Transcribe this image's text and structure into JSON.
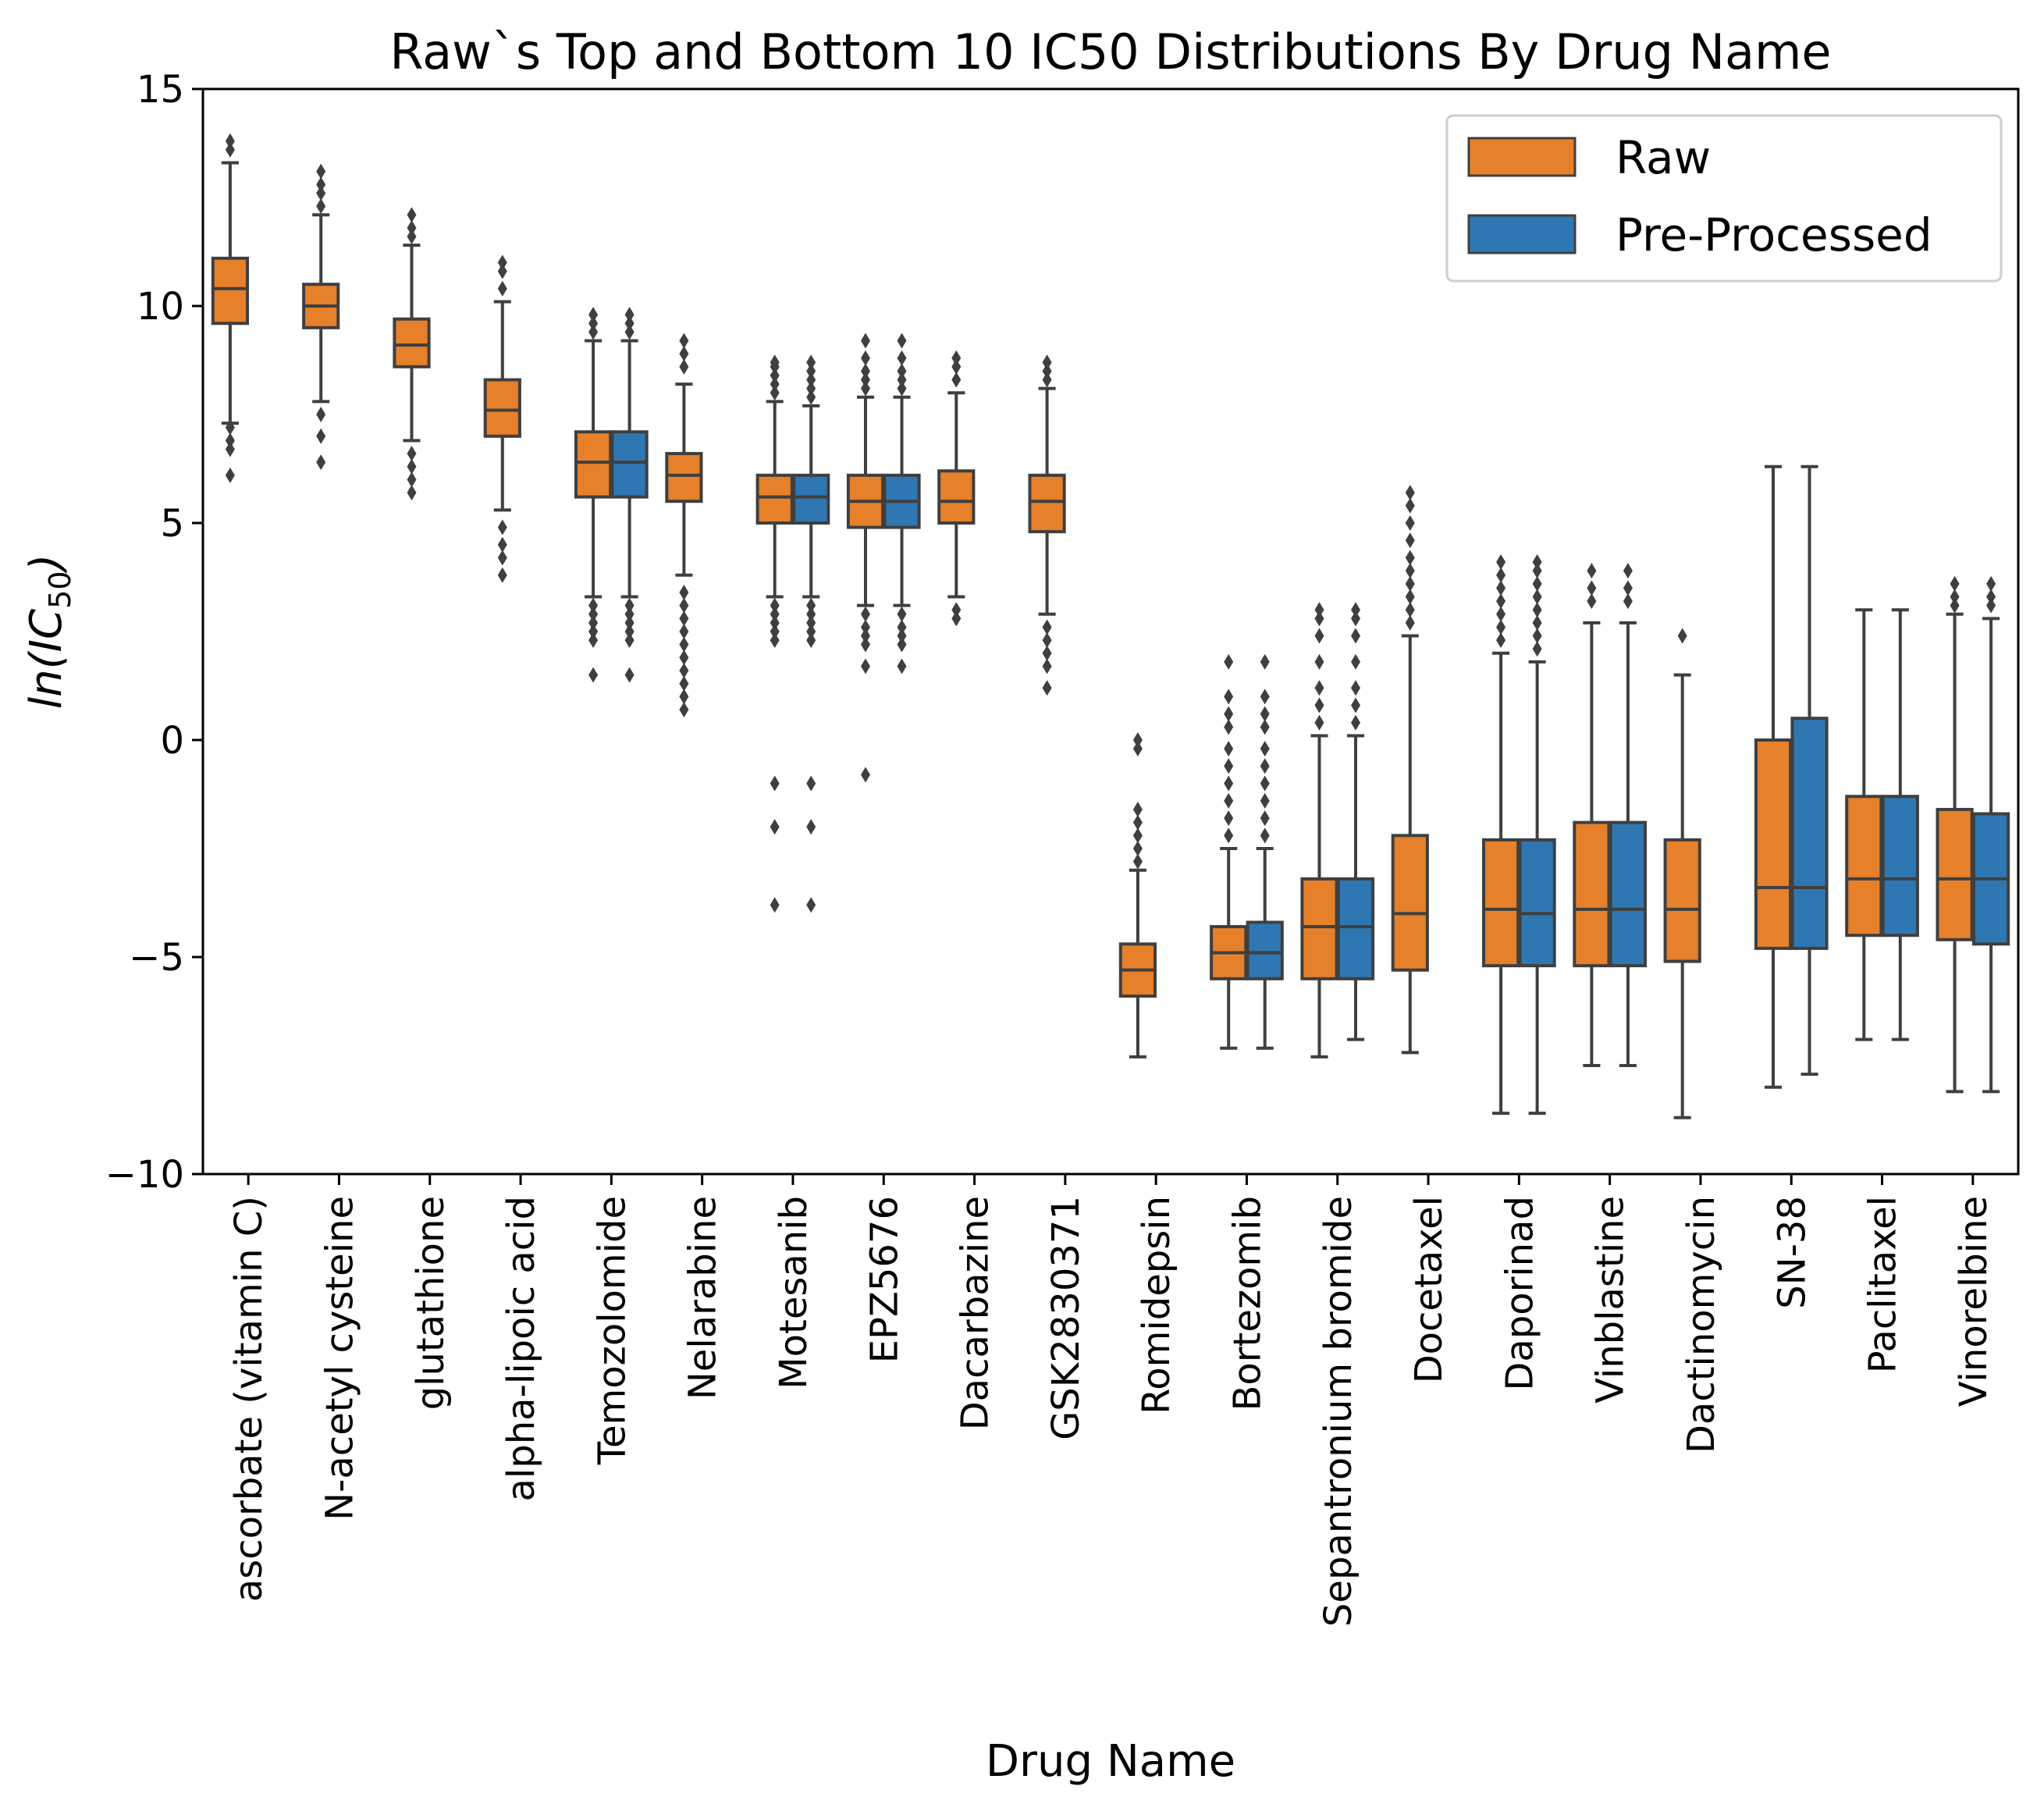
{
  "chart_data": {
    "type": "boxplot",
    "title": "Raw`s Top and Bottom 10 IC50 Distributions By Drug Name",
    "xlabel": "Drug Name",
    "ylabel": "ln(IC50)",
    "ylabel_parts": {
      "base": "ln(",
      "sym": "IC",
      "sub": "50",
      "close": ")"
    },
    "ylim": [
      -10,
      15
    ],
    "yticks": [
      {
        "value": -10,
        "label": "−10"
      },
      {
        "value": -5,
        "label": "−5"
      },
      {
        "value": 0,
        "label": "0"
      },
      {
        "value": 5,
        "label": "5"
      },
      {
        "value": 10,
        "label": "10"
      },
      {
        "value": 15,
        "label": "15"
      }
    ],
    "grid": false,
    "legend": {
      "position": "top-right",
      "entries": [
        {
          "name": "Raw",
          "color": "#E6802A"
        },
        {
          "name": "Pre-Processed",
          "color": "#2F77B2"
        }
      ]
    },
    "categories": [
      "ascorbate (vitamin C)",
      "N-acetyl cysteine",
      "glutathione",
      "alpha-lipoic acid",
      "Temozolomide",
      "Nelarabine",
      "Motesanib",
      "EPZ5676",
      "Dacarbazine",
      "GSK2830371",
      "Romidepsin",
      "Bortezomib",
      "Sepantronium bromide",
      "Docetaxel",
      "Daporinad",
      "Vinblastine",
      "Dactinomycin",
      "SN-38",
      "Paclitaxel",
      "Vinorelbine"
    ],
    "series": [
      {
        "name": "Raw",
        "boxes": [
          {
            "whislo": 7.3,
            "q1": 9.6,
            "med": 10.4,
            "q3": 11.1,
            "whishi": 13.3,
            "fliers": [
              6.1,
              6.7,
              6.9,
              7.2,
              13.6,
              13.8
            ]
          },
          {
            "whislo": 7.8,
            "q1": 9.5,
            "med": 10.0,
            "q3": 10.5,
            "whishi": 12.1,
            "fliers": [
              6.4,
              7.0,
              7.5,
              12.3,
              12.6,
              12.8,
              13.1
            ]
          },
          {
            "whislo": 6.9,
            "q1": 8.6,
            "med": 9.1,
            "q3": 9.7,
            "whishi": 11.4,
            "fliers": [
              5.7,
              6.0,
              6.3,
              6.6,
              11.6,
              11.8,
              12.1
            ]
          },
          {
            "whislo": 5.3,
            "q1": 7.0,
            "med": 7.6,
            "q3": 8.3,
            "whishi": 10.1,
            "fliers": [
              3.8,
              4.2,
              4.5,
              4.9,
              10.4,
              10.8,
              11.0
            ]
          },
          {
            "whislo": 3.3,
            "q1": 5.6,
            "med": 6.4,
            "q3": 7.1,
            "whishi": 9.2,
            "fliers": [
              1.5,
              2.3,
              2.5,
              2.7,
              2.9,
              3.1,
              9.4,
              9.6,
              9.8
            ]
          },
          {
            "whislo": 3.8,
            "q1": 5.5,
            "med": 6.1,
            "q3": 6.6,
            "whishi": 8.2,
            "fliers": [
              0.7,
              1.0,
              1.3,
              1.6,
              1.9,
              2.2,
              2.5,
              2.8,
              3.1,
              3.4,
              8.6,
              8.9,
              9.2
            ]
          },
          {
            "whislo": 3.3,
            "q1": 5.0,
            "med": 5.6,
            "q3": 6.1,
            "whishi": 7.8,
            "fliers": [
              -3.8,
              -2.0,
              -1.0,
              2.3,
              2.5,
              2.7,
              2.9,
              3.1,
              8.0,
              8.2,
              8.4,
              8.6,
              8.7
            ]
          },
          {
            "whislo": 3.1,
            "q1": 4.9,
            "med": 5.5,
            "q3": 6.1,
            "whishi": 7.9,
            "fliers": [
              -0.8,
              1.7,
              2.2,
              2.4,
              2.6,
              2.9,
              8.1,
              8.3,
              8.5,
              8.8,
              9.2
            ]
          },
          {
            "whislo": 3.3,
            "q1": 5.0,
            "med": 5.5,
            "q3": 6.2,
            "whishi": 8.0,
            "fliers": [
              2.8,
              3.0,
              8.3,
              8.6,
              8.8
            ]
          },
          {
            "whislo": 2.9,
            "q1": 4.8,
            "med": 5.5,
            "q3": 6.1,
            "whishi": 8.1,
            "fliers": [
              1.2,
              1.7,
              2.0,
              2.3,
              2.6,
              8.3,
              8.5,
              8.7
            ]
          },
          {
            "whislo": -7.3,
            "q1": -5.9,
            "med": -5.3,
            "q3": -4.7,
            "whishi": -3.0,
            "fliers": [
              -2.8,
              -2.5,
              -2.2,
              -1.9,
              -1.6,
              -0.2,
              0.0
            ]
          },
          {
            "whislo": -7.1,
            "q1": -5.5,
            "med": -4.9,
            "q3": -4.3,
            "whishi": -2.5,
            "fliers": [
              -2.2,
              -1.8,
              -1.4,
              -1.0,
              -0.6,
              -0.2,
              0.3,
              0.6,
              1.0,
              1.8
            ]
          },
          {
            "whislo": -7.3,
            "q1": -5.5,
            "med": -4.3,
            "q3": -3.2,
            "whishi": 0.1,
            "fliers": [
              0.4,
              0.8,
              1.2,
              1.8,
              2.4,
              2.8,
              3.0
            ]
          },
          {
            "whislo": -7.2,
            "q1": -5.3,
            "med": -4.0,
            "q3": -2.2,
            "whishi": 2.4,
            "fliers": [
              2.7,
              3.0,
              3.3,
              3.6,
              3.9,
              4.2,
              4.6,
              5.0,
              5.4,
              5.7
            ]
          },
          {
            "whislo": -8.6,
            "q1": -5.2,
            "med": -3.9,
            "q3": -2.3,
            "whishi": 2.0,
            "fliers": [
              2.3,
              2.6,
              2.9,
              3.2,
              3.5,
              3.8,
              4.1
            ]
          },
          {
            "whislo": -7.5,
            "q1": -5.2,
            "med": -3.9,
            "q3": -1.9,
            "whishi": 2.7,
            "fliers": [
              3.2,
              3.5,
              3.9
            ]
          },
          {
            "whislo": -8.7,
            "q1": -5.1,
            "med": -3.9,
            "q3": -2.3,
            "whishi": 1.5,
            "fliers": [
              2.4
            ]
          },
          {
            "whislo": -8.0,
            "q1": -4.8,
            "med": -3.4,
            "q3": 0.0,
            "whishi": 6.3,
            "fliers": []
          },
          {
            "whislo": -6.9,
            "q1": -4.5,
            "med": -3.2,
            "q3": -1.3,
            "whishi": 3.0,
            "fliers": []
          },
          {
            "whislo": -8.1,
            "q1": -4.6,
            "med": -3.2,
            "q3": -1.6,
            "whishi": 2.9,
            "fliers": [
              3.1,
              3.3,
              3.6
            ]
          }
        ]
      },
      {
        "name": "Pre-Processed",
        "boxes": [
          null,
          null,
          null,
          null,
          {
            "whislo": 3.3,
            "q1": 5.6,
            "med": 6.4,
            "q3": 7.1,
            "whishi": 9.2,
            "fliers": [
              1.5,
              2.3,
              2.5,
              2.7,
              2.9,
              3.1,
              9.4,
              9.6,
              9.8
            ]
          },
          null,
          {
            "whislo": 3.3,
            "q1": 5.0,
            "med": 5.6,
            "q3": 6.1,
            "whishi": 7.7,
            "fliers": [
              -3.8,
              -2.0,
              -1.0,
              2.3,
              2.5,
              2.7,
              2.9,
              3.1,
              7.9,
              8.1,
              8.3,
              8.5,
              8.7
            ]
          },
          {
            "whislo": 3.1,
            "q1": 4.9,
            "med": 5.5,
            "q3": 6.1,
            "whishi": 7.9,
            "fliers": [
              1.7,
              2.2,
              2.4,
              2.6,
              2.9,
              8.1,
              8.3,
              8.5,
              8.8,
              9.2
            ]
          },
          null,
          null,
          null,
          {
            "whislo": -7.1,
            "q1": -5.5,
            "med": -4.9,
            "q3": -4.2,
            "whishi": -2.5,
            "fliers": [
              -2.2,
              -1.8,
              -1.4,
              -1.0,
              -0.6,
              -0.2,
              0.3,
              0.6,
              1.0,
              1.8
            ]
          },
          {
            "whislo": -6.9,
            "q1": -5.5,
            "med": -4.3,
            "q3": -3.2,
            "whishi": 0.1,
            "fliers": [
              0.4,
              0.8,
              1.2,
              1.8,
              2.4,
              2.8,
              3.0
            ]
          },
          null,
          {
            "whislo": -8.6,
            "q1": -5.2,
            "med": -4.0,
            "q3": -2.3,
            "whishi": 1.8,
            "fliers": [
              2.1,
              2.4,
              2.7,
              3.0,
              3.3,
              3.6,
              3.9,
              4.1
            ]
          },
          {
            "whislo": -7.5,
            "q1": -5.2,
            "med": -3.9,
            "q3": -1.9,
            "whishi": 2.7,
            "fliers": [
              3.2,
              3.5,
              3.9
            ]
          },
          null,
          {
            "whislo": -7.7,
            "q1": -4.8,
            "med": -3.4,
            "q3": 0.5,
            "whishi": 6.3,
            "fliers": []
          },
          {
            "whislo": -6.9,
            "q1": -4.5,
            "med": -3.2,
            "q3": -1.3,
            "whishi": 3.0,
            "fliers": []
          },
          {
            "whislo": -8.1,
            "q1": -4.7,
            "med": -3.2,
            "q3": -1.7,
            "whishi": 2.8,
            "fliers": [
              3.1,
              3.3,
              3.6
            ]
          }
        ]
      }
    ]
  }
}
